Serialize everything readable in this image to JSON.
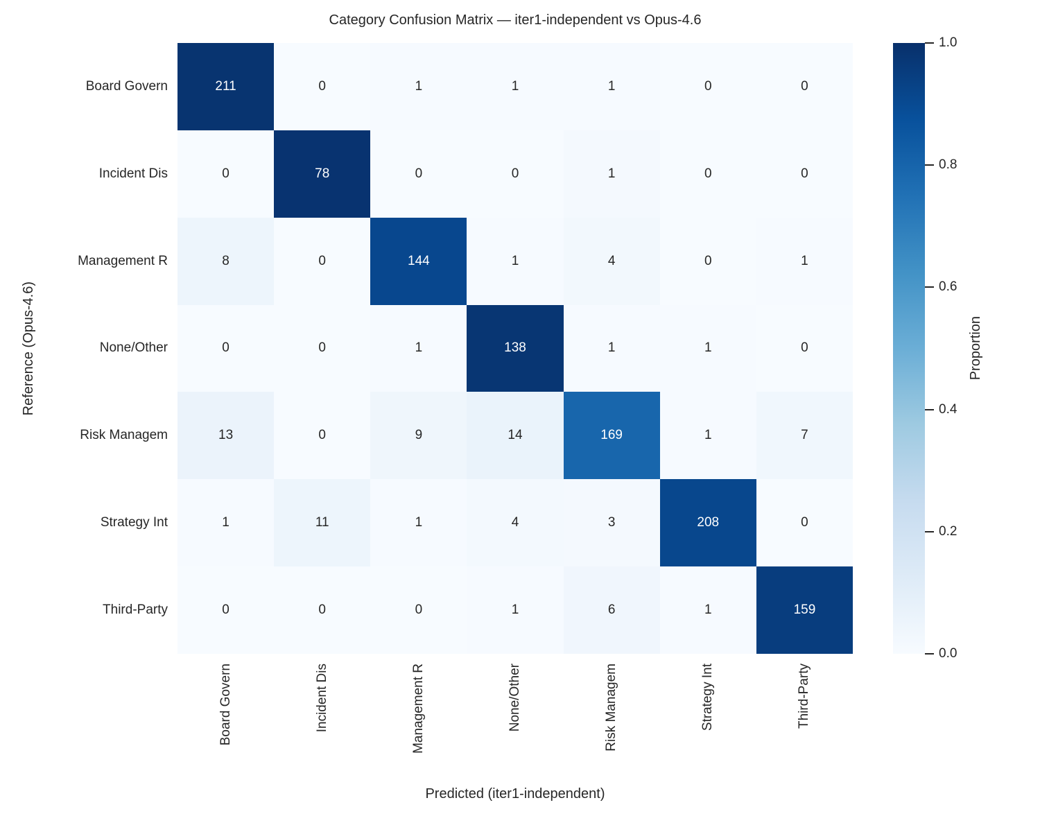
{
  "chart_data": {
    "type": "heatmap",
    "title": "Category Confusion Matrix — iter1-independent vs Opus-4.6",
    "xlabel": "Predicted (iter1-independent)",
    "ylabel": "Reference (Opus-4.6)",
    "categories": [
      "Board Govern",
      "Incident Dis",
      "Management R",
      "None/Other",
      "Risk Managem",
      "Strategy Int",
      "Third-Party"
    ],
    "matrix": [
      [
        211,
        0,
        1,
        1,
        1,
        0,
        0
      ],
      [
        0,
        78,
        0,
        0,
        1,
        0,
        0
      ],
      [
        8,
        0,
        144,
        1,
        4,
        0,
        1
      ],
      [
        0,
        0,
        1,
        138,
        1,
        1,
        0
      ],
      [
        13,
        0,
        9,
        14,
        169,
        1,
        7
      ],
      [
        1,
        11,
        1,
        4,
        3,
        208,
        0
      ],
      [
        0,
        0,
        0,
        1,
        6,
        1,
        159
      ]
    ],
    "normalization": "row",
    "annotation_values": "raw counts",
    "grid": false,
    "colorbar": {
      "label": "Proportion",
      "ticks": [
        0.0,
        0.2,
        0.4,
        0.6,
        0.8,
        1.0
      ],
      "range": [
        0,
        1
      ],
      "position": "right"
    },
    "colormap": {
      "name": "Blues",
      "stops": [
        "#f7fbff",
        "#deebf7",
        "#c6dbef",
        "#9ecae1",
        "#6baed6",
        "#4292c6",
        "#2171b5",
        "#08519c",
        "#08306b"
      ]
    },
    "colors": {
      "text": "#262626",
      "annotation_on_dark": "#ffffff",
      "background": "#ffffff"
    }
  }
}
